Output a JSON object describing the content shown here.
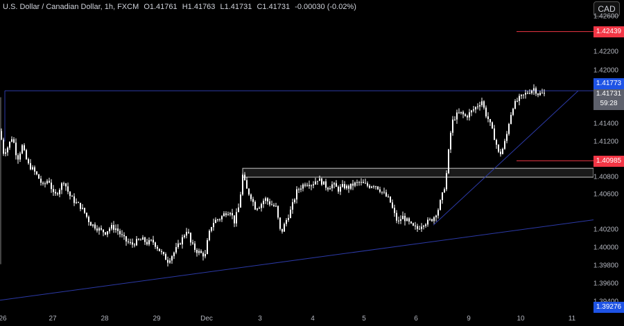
{
  "legend": {
    "symbol": "U.S. Dollar / Canadian Dollar, 1h, FXCM",
    "open_key": "O",
    "open": "1.41761",
    "high_key": "H",
    "high": "1.41763",
    "low_key": "L",
    "low": "1.41731",
    "close_key": "C",
    "close": "1.41731",
    "change": "-0.00030 (-0.02%)"
  },
  "currency_button": "CAD",
  "price_axis": {
    "ticks": [
      "1.42600",
      "1.42200",
      "1.42000",
      "1.41400",
      "1.41200",
      "1.40800",
      "1.40600",
      "1.40200",
      "1.40000",
      "1.39800",
      "1.39600",
      "1.39400"
    ]
  },
  "price_tags": {
    "resistance_high": "1.42439",
    "current_line": "1.41773",
    "last_price": "1.41731",
    "countdown": "59:28",
    "support_mid": "1.40985",
    "support_low": "1.39276"
  },
  "time_axis": {
    "ticks": [
      "26",
      "27",
      "28",
      "29",
      "Dec",
      "3",
      "4",
      "5",
      "6",
      "9",
      "10",
      "11"
    ]
  },
  "colors": {
    "background": "#000000",
    "candle": "#ffffff",
    "trendline": "#2c3aa8",
    "red_level": "#f23645",
    "blue_tag": "#1e53e5",
    "zone_border": "#c8c8c8"
  },
  "chart_data": {
    "type": "candlestick",
    "ylim": [
      1.394,
      1.427
    ],
    "x_ticks": [
      "26",
      "27",
      "28",
      "29",
      "Dec",
      "3",
      "4",
      "5",
      "6",
      "9",
      "10",
      "11"
    ],
    "path": [
      [
        0,
        1.4132
      ],
      [
        5,
        1.4108
      ],
      [
        10,
        1.4112
      ],
      [
        18,
        1.4126
      ],
      [
        25,
        1.41
      ],
      [
        32,
        1.4115
      ],
      [
        40,
        1.4095
      ],
      [
        48,
        1.4088
      ],
      [
        55,
        1.408
      ],
      [
        62,
        1.407
      ],
      [
        70,
        1.4078
      ],
      [
        78,
        1.4058
      ],
      [
        85,
        1.4066
      ],
      [
        92,
        1.4076
      ],
      [
        100,
        1.406
      ],
      [
        108,
        1.4052
      ],
      [
        115,
        1.4048
      ],
      [
        122,
        1.404
      ],
      [
        130,
        1.4028
      ],
      [
        138,
        1.4024
      ],
      [
        145,
        1.402
      ],
      [
        152,
        1.4018
      ],
      [
        160,
        1.4024
      ],
      [
        168,
        1.4022
      ],
      [
        175,
        1.4014
      ],
      [
        182,
        1.4008
      ],
      [
        190,
        1.4004
      ],
      [
        198,
        1.4008
      ],
      [
        205,
        1.401
      ],
      [
        212,
        1.4006
      ],
      [
        220,
        1.4008
      ],
      [
        228,
        1.4
      ],
      [
        235,
        1.3992
      ],
      [
        242,
        1.3986
      ],
      [
        250,
        1.3994
      ],
      [
        258,
        1.4004
      ],
      [
        265,
        1.4014
      ],
      [
        270,
        1.4022
      ],
      [
        275,
        1.4006
      ],
      [
        282,
        1.3998
      ],
      [
        290,
        1.3994
      ],
      [
        296,
        1.3992
      ],
      [
        300,
        1.4012
      ],
      [
        306,
        1.4028
      ],
      [
        312,
        1.4032
      ],
      [
        318,
        1.4034
      ],
      [
        325,
        1.404
      ],
      [
        332,
        1.4042
      ],
      [
        338,
        1.403
      ],
      [
        345,
        1.4048
      ],
      [
        350,
        1.4082
      ],
      [
        356,
        1.4066
      ],
      [
        362,
        1.4058
      ],
      [
        368,
        1.4046
      ],
      [
        375,
        1.4048
      ],
      [
        382,
        1.4056
      ],
      [
        390,
        1.405
      ],
      [
        398,
        1.4046
      ],
      [
        405,
        1.4016
      ],
      [
        412,
        1.403
      ],
      [
        420,
        1.4044
      ],
      [
        428,
        1.4064
      ],
      [
        435,
        1.407
      ],
      [
        442,
        1.4074
      ],
      [
        450,
        1.4072
      ],
      [
        458,
        1.4078
      ],
      [
        465,
        1.4074
      ],
      [
        472,
        1.4068
      ],
      [
        480,
        1.4072
      ],
      [
        488,
        1.4066
      ],
      [
        495,
        1.407
      ],
      [
        502,
        1.4068
      ],
      [
        510,
        1.4072
      ],
      [
        518,
        1.4074
      ],
      [
        525,
        1.4072
      ],
      [
        532,
        1.407
      ],
      [
        540,
        1.4072
      ],
      [
        548,
        1.4066
      ],
      [
        555,
        1.406
      ],
      [
        562,
        1.4054
      ],
      [
        568,
        1.404
      ],
      [
        574,
        1.4028
      ],
      [
        580,
        1.4036
      ],
      [
        588,
        1.403
      ],
      [
        595,
        1.4024
      ],
      [
        602,
        1.4022
      ],
      [
        610,
        1.4028
      ],
      [
        618,
        1.403
      ],
      [
        625,
        1.4034
      ],
      [
        632,
        1.4044
      ],
      [
        638,
        1.406
      ],
      [
        642,
        1.4072
      ],
      [
        645,
        1.409
      ],
      [
        648,
        1.4118
      ],
      [
        652,
        1.4142
      ],
      [
        658,
        1.415
      ],
      [
        665,
        1.4152
      ],
      [
        672,
        1.4148
      ],
      [
        680,
        1.4154
      ],
      [
        688,
        1.416
      ],
      [
        695,
        1.4166
      ],
      [
        700,
        1.4152
      ],
      [
        705,
        1.4144
      ],
      [
        710,
        1.4132
      ],
      [
        715,
        1.412
      ],
      [
        720,
        1.4104
      ],
      [
        725,
        1.4112
      ],
      [
        730,
        1.4124
      ],
      [
        735,
        1.4146
      ],
      [
        740,
        1.416
      ],
      [
        748,
        1.4168
      ],
      [
        755,
        1.4172
      ],
      [
        762,
        1.4176
      ],
      [
        770,
        1.418
      ],
      [
        776,
        1.4174
      ],
      [
        782,
        1.4174
      ],
      [
        786,
        1.41731
      ]
    ]
  }
}
